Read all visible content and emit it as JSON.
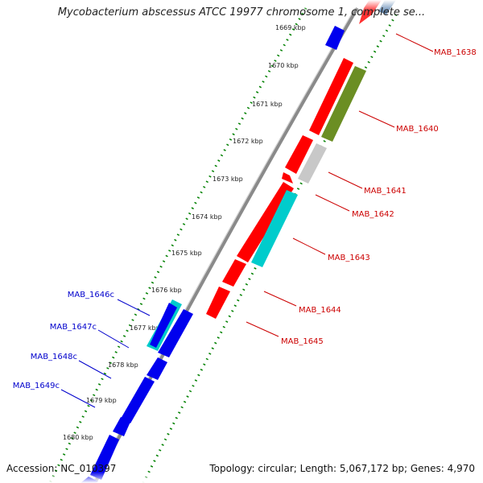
{
  "title": "Mycobacterium abscessus ATCC 19977 chromosome 1, complete se...",
  "footer": {
    "accession": "Accession: NC_010397",
    "summary": "Topology: circular; Length: 5,067,172 bp; Genes: 4,970"
  },
  "colors": {
    "forward": "#ff0000",
    "reverse": "#0000ee",
    "rna": "#00cccc",
    "pseudo": "#c8c8c8",
    "olive": "#6b8e23",
    "forward_label": "#cc0000",
    "reverse_label": "#0000cc",
    "tick": "#008000",
    "backbone": "#888888"
  },
  "kbp_ticks": [
    "1669 kbp",
    "1670 kbp",
    "1671 kbp",
    "1672 kbp",
    "1673 kbp",
    "1674 kbp",
    "1675 kbp",
    "1676 kbp",
    "1677 kbp",
    "1678 kbp",
    "1679 kbp",
    "1680 kbp"
  ],
  "forward_labels": [
    "MAB_1638",
    "MAB_1640",
    "MAB_1641",
    "MAB_1642",
    "MAB_1643",
    "MAB_1644",
    "MAB_1645"
  ],
  "reverse_labels": [
    "MAB_1646c",
    "MAB_1647c",
    "MAB_1648c",
    "MAB_1649c"
  ]
}
